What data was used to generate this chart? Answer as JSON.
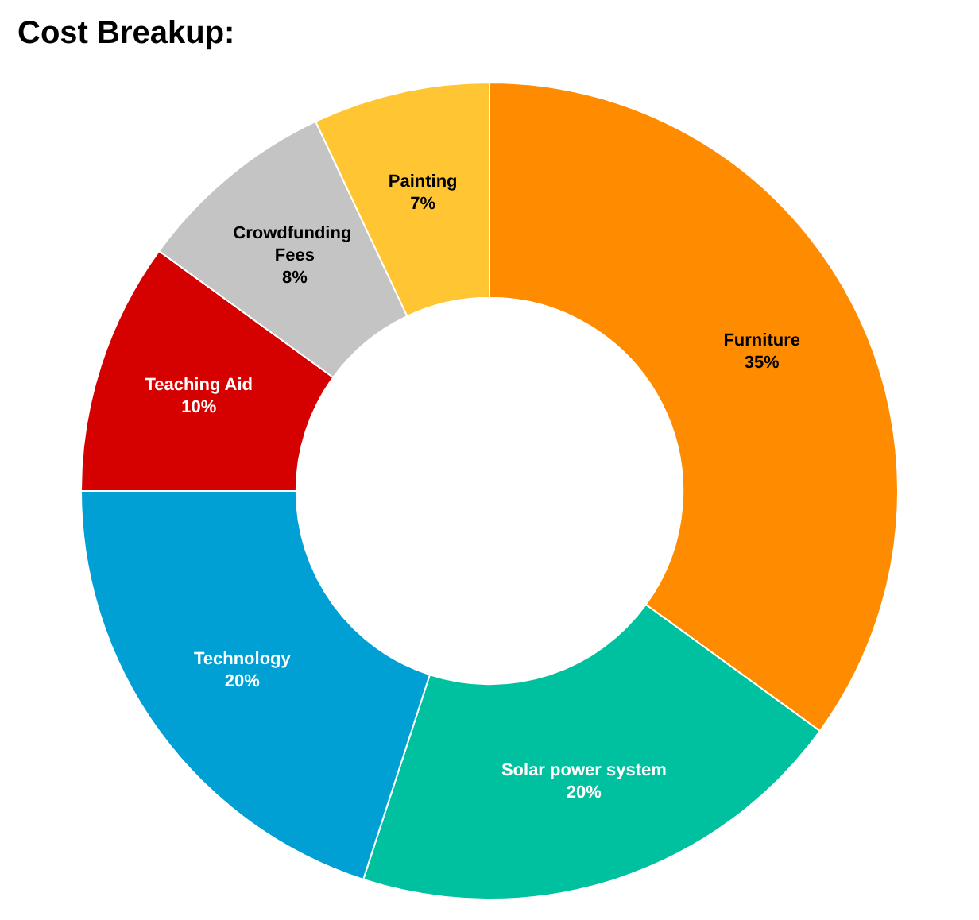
{
  "chart_data": {
    "type": "donut",
    "title": "Cost Breakup:",
    "categories": [
      "Furniture",
      "Solar power system",
      "Technology",
      "Teaching Aid",
      "Crowdfunding Fees",
      "Painting"
    ],
    "values": [
      35,
      20,
      20,
      10,
      8,
      7
    ],
    "colors": [
      "#ff8c00",
      "#00c19f",
      "#009fd4",
      "#d50000",
      "#c4c4c4",
      "#ffc533"
    ],
    "value_labels": [
      "35%",
      "20%",
      "20%",
      "10%",
      "8%",
      "7%"
    ],
    "legend": false
  }
}
